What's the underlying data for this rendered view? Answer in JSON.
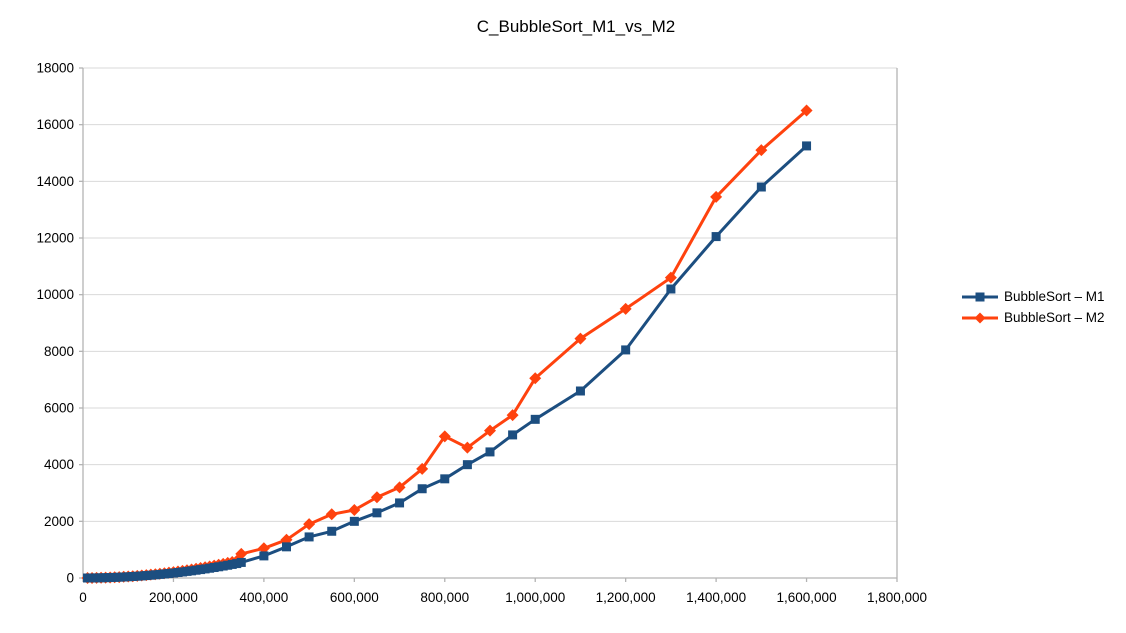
{
  "title": "C_BubbleSort_M1_vs_M2",
  "colors": {
    "series1": "#1C4E80",
    "series2": "#FF420E",
    "gridline": "#D9D9D9",
    "axis": "#B3B3B3",
    "text": "#000000",
    "background": "#FFFFFF"
  },
  "chart_data": {
    "type": "line",
    "title": "C_BubbleSort_M1_vs_M2",
    "xlabel": "",
    "ylabel": "",
    "xlim": [
      0,
      1800000
    ],
    "ylim": [
      0,
      18000
    ],
    "grid": "horizontal-only",
    "legend_position": "right",
    "x_tick_labels": [
      "0",
      "200,000",
      "400,000",
      "600,000",
      "800,000",
      "1,000,000",
      "1,200,000",
      "1,400,000",
      "1,600,000",
      "1,800,000"
    ],
    "y_tick_labels": [
      "0",
      "2000",
      "4000",
      "6000",
      "8000",
      "10000",
      "12000",
      "14000",
      "16000",
      "18000"
    ],
    "series": [
      {
        "name": "BubbleSort – M1",
        "color": "#1C4E80",
        "marker": "square",
        "points": [
          [
            10000,
            0
          ],
          [
            20000,
            2
          ],
          [
            30000,
            4
          ],
          [
            40000,
            7
          ],
          [
            50000,
            11
          ],
          [
            60000,
            16
          ],
          [
            70000,
            22
          ],
          [
            80000,
            28
          ],
          [
            90000,
            36
          ],
          [
            100000,
            44
          ],
          [
            110000,
            53
          ],
          [
            120000,
            63
          ],
          [
            130000,
            74
          ],
          [
            140000,
            86
          ],
          [
            150000,
            99
          ],
          [
            160000,
            113
          ],
          [
            170000,
            127
          ],
          [
            180000,
            143
          ],
          [
            190000,
            159
          ],
          [
            200000,
            176
          ],
          [
            210000,
            194
          ],
          [
            220000,
            213
          ],
          [
            230000,
            233
          ],
          [
            240000,
            253
          ],
          [
            250000,
            275
          ],
          [
            260000,
            297
          ],
          [
            270000,
            321
          ],
          [
            280000,
            345
          ],
          [
            290000,
            370
          ],
          [
            300000,
            396
          ],
          [
            310000,
            423
          ],
          [
            320000,
            450
          ],
          [
            330000,
            479
          ],
          [
            340000,
            509
          ],
          [
            350000,
            550
          ],
          [
            400000,
            780
          ],
          [
            450000,
            1100
          ],
          [
            500000,
            1450
          ],
          [
            550000,
            1650
          ],
          [
            600000,
            2000
          ],
          [
            650000,
            2300
          ],
          [
            700000,
            2650
          ],
          [
            750000,
            3150
          ],
          [
            800000,
            3500
          ],
          [
            850000,
            4000
          ],
          [
            900000,
            4450
          ],
          [
            950000,
            5050
          ],
          [
            1000000,
            5600
          ],
          [
            1100000,
            6600
          ],
          [
            1200000,
            8050
          ],
          [
            1300000,
            10200
          ],
          [
            1400000,
            12050
          ],
          [
            1500000,
            13800
          ],
          [
            1600000,
            15250
          ]
        ]
      },
      {
        "name": "BubbleSort – M2",
        "color": "#FF420E",
        "marker": "diamond",
        "points": [
          [
            10000,
            1
          ],
          [
            20000,
            2
          ],
          [
            30000,
            5
          ],
          [
            40000,
            8
          ],
          [
            50000,
            13
          ],
          [
            60000,
            19
          ],
          [
            70000,
            25
          ],
          [
            80000,
            33
          ],
          [
            90000,
            42
          ],
          [
            100000,
            52
          ],
          [
            110000,
            63
          ],
          [
            120000,
            75
          ],
          [
            130000,
            88
          ],
          [
            140000,
            102
          ],
          [
            150000,
            117
          ],
          [
            160000,
            133
          ],
          [
            170000,
            150
          ],
          [
            180000,
            168
          ],
          [
            190000,
            188
          ],
          [
            200000,
            208
          ],
          [
            210000,
            229
          ],
          [
            220000,
            252
          ],
          [
            230000,
            275
          ],
          [
            240000,
            300
          ],
          [
            250000,
            325
          ],
          [
            260000,
            352
          ],
          [
            270000,
            379
          ],
          [
            280000,
            408
          ],
          [
            290000,
            437
          ],
          [
            300000,
            468
          ],
          [
            310000,
            500
          ],
          [
            320000,
            532
          ],
          [
            330000,
            566
          ],
          [
            340000,
            601
          ],
          [
            350000,
            850
          ],
          [
            400000,
            1050
          ],
          [
            450000,
            1350
          ],
          [
            500000,
            1900
          ],
          [
            550000,
            2250
          ],
          [
            600000,
            2400
          ],
          [
            650000,
            2850
          ],
          [
            700000,
            3200
          ],
          [
            750000,
            3850
          ],
          [
            800000,
            5000
          ],
          [
            850000,
            4600
          ],
          [
            900000,
            5200
          ],
          [
            950000,
            5750
          ],
          [
            1000000,
            7050
          ],
          [
            1100000,
            8450
          ],
          [
            1200000,
            9500
          ],
          [
            1300000,
            10600
          ],
          [
            1400000,
            13450
          ],
          [
            1500000,
            15100
          ],
          [
            1600000,
            16500
          ]
        ]
      }
    ]
  }
}
